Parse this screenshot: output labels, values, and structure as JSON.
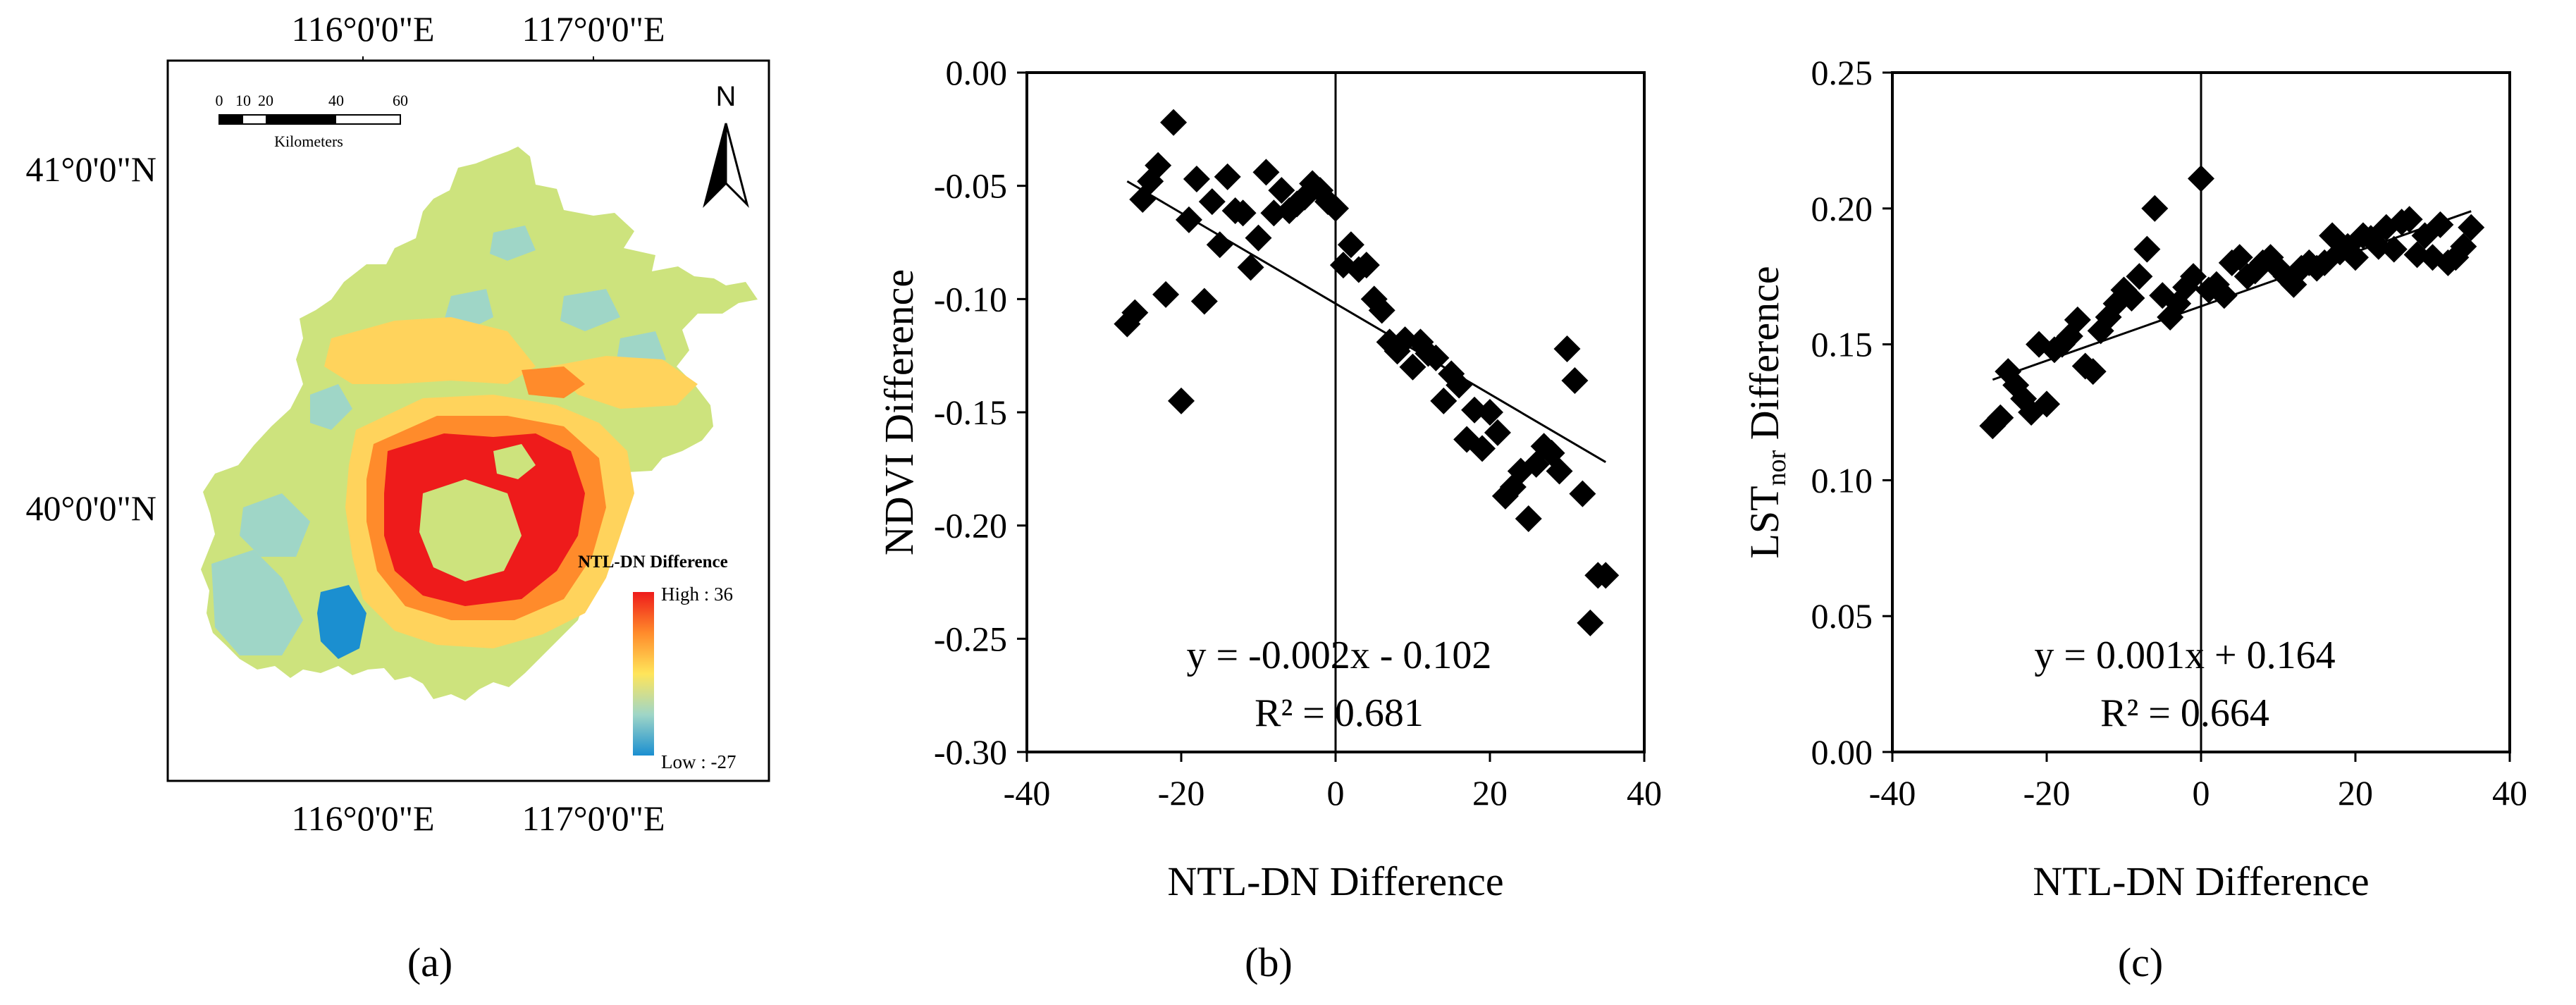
{
  "figure": {
    "panel_labels": [
      "(a)",
      "(b)",
      "(c)"
    ]
  },
  "map": {
    "top_ticks": [
      "116°0'0\"E",
      "117°0'0\"E"
    ],
    "bottom_ticks": [
      "116°0'0\"E",
      "117°0'0\"E"
    ],
    "left_ticks": [
      "41°0'0\"N",
      "40°0'0\"N"
    ],
    "scalebar": {
      "ticks": [
        "0",
        "10",
        "20",
        "40",
        "60"
      ],
      "unit": "Kilometers"
    },
    "north_label": "N",
    "legend": {
      "title": "NTL-DN Difference",
      "high": "High : 36",
      "low": "Low : -27"
    },
    "colors": {
      "low": "#1b8fd0",
      "mid_low": "#9fd6c7",
      "mid": "#cde37d",
      "mid_high": "#ffd35c",
      "high_orange": "#ff8b2b",
      "high": "#ee1b1b"
    }
  },
  "chart_data": [
    {
      "type": "scatter",
      "panel": "b",
      "xlabel": "NTL-DN Difference",
      "ylabel": "NDVI Difference",
      "xlim": [
        -40,
        40
      ],
      "ylim": [
        -0.3,
        0.0
      ],
      "xticks": [
        -40,
        -20,
        0,
        20,
        40
      ],
      "yticks": [
        0.0,
        -0.05,
        -0.1,
        -0.15,
        -0.2,
        -0.25,
        -0.3
      ],
      "xtick_labels": [
        "-40",
        "-20",
        "0",
        "20",
        "40"
      ],
      "ytick_labels": [
        "0.00",
        "-0.05",
        "-0.10",
        "-0.15",
        "-0.20",
        "-0.25",
        "-0.30"
      ],
      "equation": "y = -0.002x - 0.102",
      "r2": "R² = 0.681",
      "fit": {
        "slope": -0.002,
        "intercept": -0.102,
        "x_range": [
          -27,
          35
        ]
      },
      "x": [
        -27,
        -26,
        -25,
        -24,
        -23,
        -22,
        -21,
        -20,
        -19,
        -18,
        -17,
        -16,
        -15,
        -14,
        -13,
        -12,
        -11,
        -10,
        -9,
        -8,
        -7,
        -6,
        -5,
        -4,
        -3,
        -2,
        -1,
        0,
        1,
        2,
        3,
        4,
        5,
        6,
        7,
        8,
        9,
        10,
        11,
        12,
        13,
        14,
        15,
        16,
        17,
        18,
        19,
        20,
        21,
        22,
        23,
        24,
        25,
        26,
        27,
        28,
        29,
        30,
        31,
        32,
        33,
        34,
        35
      ],
      "y": [
        -0.111,
        -0.106,
        -0.056,
        -0.048,
        -0.041,
        -0.098,
        -0.022,
        -0.145,
        -0.065,
        -0.047,
        -0.101,
        -0.057,
        -0.076,
        -0.046,
        -0.061,
        -0.062,
        -0.086,
        -0.073,
        -0.044,
        -0.062,
        -0.052,
        -0.061,
        -0.058,
        -0.055,
        -0.049,
        -0.052,
        -0.057,
        -0.06,
        -0.085,
        -0.076,
        -0.087,
        -0.085,
        -0.1,
        -0.105,
        -0.119,
        -0.123,
        -0.118,
        -0.13,
        -0.119,
        -0.124,
        -0.126,
        -0.145,
        -0.133,
        -0.138,
        -0.162,
        -0.149,
        -0.166,
        -0.15,
        -0.159,
        -0.187,
        -0.183,
        -0.176,
        -0.197,
        -0.173,
        -0.165,
        -0.168,
        -0.176,
        -0.122,
        -0.136,
        -0.186,
        -0.243,
        -0.222,
        -0.222
      ]
    },
    {
      "type": "scatter",
      "panel": "c",
      "xlabel": "NTL-DN Difference",
      "ylabel": "LST",
      "ylabel_sub": "nor",
      "ylabel_suffix": " Difference",
      "xlim": [
        -40,
        40
      ],
      "ylim": [
        0.0,
        0.25
      ],
      "xticks": [
        -40,
        -20,
        0,
        20,
        40
      ],
      "yticks": [
        0.0,
        0.05,
        0.1,
        0.15,
        0.2,
        0.25
      ],
      "xtick_labels": [
        "-40",
        "-20",
        "0",
        "20",
        "40"
      ],
      "ytick_labels": [
        "0.00",
        "0.05",
        "0.10",
        "0.15",
        "0.20",
        "0.25"
      ],
      "equation": "y = 0.001x + 0.164",
      "r2": "R² = 0.664",
      "fit": {
        "slope": 0.001,
        "intercept": 0.164,
        "x_range": [
          -27,
          35
        ]
      },
      "x": [
        -27,
        -26,
        -25,
        -24,
        -23,
        -22,
        -21,
        -20,
        -19,
        -18,
        -17,
        -16,
        -15,
        -14,
        -13,
        -12,
        -11,
        -10,
        -9,
        -8,
        -7,
        -6,
        -5,
        -4,
        -3,
        -2,
        -1,
        0,
        1,
        2,
        3,
        4,
        5,
        6,
        7,
        8,
        9,
        10,
        11,
        12,
        13,
        14,
        15,
        16,
        17,
        18,
        19,
        20,
        21,
        22,
        23,
        24,
        25,
        26,
        27,
        28,
        29,
        30,
        31,
        32,
        33,
        34,
        35
      ],
      "y": [
        0.12,
        0.123,
        0.14,
        0.135,
        0.13,
        0.125,
        0.15,
        0.128,
        0.148,
        0.15,
        0.153,
        0.159,
        0.142,
        0.14,
        0.155,
        0.16,
        0.165,
        0.17,
        0.167,
        0.175,
        0.185,
        0.2,
        0.168,
        0.16,
        0.165,
        0.171,
        0.175,
        0.211,
        0.17,
        0.172,
        0.168,
        0.18,
        0.182,
        0.175,
        0.177,
        0.18,
        0.182,
        0.178,
        0.175,
        0.172,
        0.178,
        0.18,
        0.178,
        0.18,
        0.19,
        0.184,
        0.186,
        0.182,
        0.19,
        0.189,
        0.186,
        0.193,
        0.185,
        0.195,
        0.196,
        0.183,
        0.19,
        0.182,
        0.194,
        0.18,
        0.182,
        0.186,
        0.193
      ]
    }
  ]
}
